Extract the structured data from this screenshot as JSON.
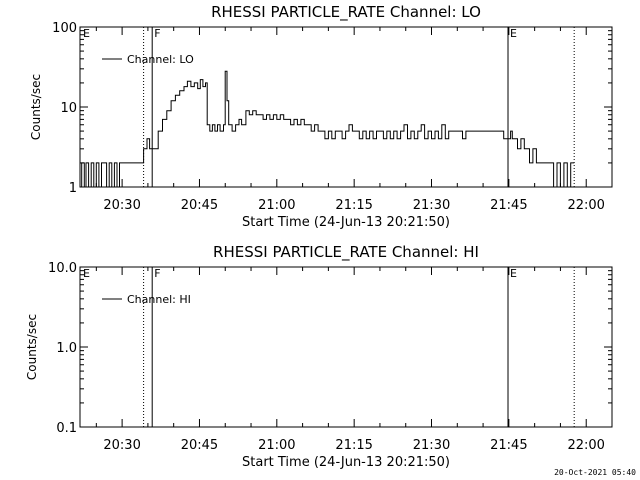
{
  "chart_data": [
    {
      "type": "line",
      "title": "RHESSI PARTICLE_RATE Channel: LO",
      "xlabel": "Start Time (24-Jun-13 20:21:50)",
      "ylabel": "Counts/sec",
      "yscale": "log",
      "ylim": [
        1,
        100
      ],
      "xlim": [
        "20:21:50",
        "22:05:00"
      ],
      "xticks": [
        "20:30",
        "20:45",
        "21:00",
        "21:15",
        "21:30",
        "21:45",
        "22:00"
      ],
      "yticks": [
        "1",
        "10",
        "100"
      ],
      "legend": {
        "label": "Channel: LO",
        "placement": "top-left"
      },
      "markers": [
        {
          "time": "20:34:10",
          "style": "dotted",
          "label": "E"
        },
        {
          "time": "20:35:50",
          "style": "solid",
          "label": "F"
        },
        {
          "time": "21:44:50",
          "style": "solid",
          "label": "E"
        },
        {
          "time": "21:57:40",
          "style": "dotted",
          "label": ""
        }
      ],
      "edge_labels": [
        "E"
      ],
      "series": [
        {
          "name": "Channel: LO",
          "points": [
            [
              "20:21:50",
              1
            ],
            [
              "20:22:10",
              2
            ],
            [
              "20:22:40",
              1
            ],
            [
              "20:23:00",
              2
            ],
            [
              "20:23:30",
              1
            ],
            [
              "20:24:00",
              2
            ],
            [
              "20:24:30",
              1
            ],
            [
              "20:25:00",
              2
            ],
            [
              "20:25:30",
              1
            ],
            [
              "20:26:00",
              2
            ],
            [
              "20:26:30",
              2
            ],
            [
              "20:27:00",
              1
            ],
            [
              "20:27:30",
              2
            ],
            [
              "20:28:00",
              1
            ],
            [
              "20:28:30",
              2
            ],
            [
              "20:29:00",
              1
            ],
            [
              "20:29:30",
              2
            ],
            [
              "20:30:00",
              2
            ],
            [
              "20:31:00",
              2
            ],
            [
              "20:32:00",
              2
            ],
            [
              "20:33:00",
              2
            ],
            [
              "20:33:50",
              2
            ],
            [
              "20:34:10",
              3
            ],
            [
              "20:34:50",
              4
            ],
            [
              "20:35:20",
              3
            ],
            [
              "20:35:50",
              3
            ],
            [
              "20:36:30",
              3
            ],
            [
              "20:37:00",
              5
            ],
            [
              "20:37:50",
              7
            ],
            [
              "20:38:40",
              9
            ],
            [
              "20:39:30",
              12
            ],
            [
              "20:40:20",
              14
            ],
            [
              "20:41:10",
              16
            ],
            [
              "20:42:00",
              18
            ],
            [
              "20:42:40",
              21
            ],
            [
              "20:43:20",
              18
            ],
            [
              "20:44:00",
              20
            ],
            [
              "20:44:40",
              17
            ],
            [
              "20:45:10",
              22
            ],
            [
              "20:45:40",
              18
            ],
            [
              "20:46:10",
              20
            ],
            [
              "20:46:30",
              6
            ],
            [
              "20:47:00",
              5
            ],
            [
              "20:47:30",
              6
            ],
            [
              "20:48:00",
              5
            ],
            [
              "20:48:30",
              6
            ],
            [
              "20:49:00",
              5
            ],
            [
              "20:49:40",
              6
            ],
            [
              "20:50:00",
              28
            ],
            [
              "20:50:20",
              12
            ],
            [
              "20:50:40",
              6
            ],
            [
              "20:51:20",
              5
            ],
            [
              "20:52:00",
              6
            ],
            [
              "20:52:40",
              7
            ],
            [
              "20:53:10",
              6
            ],
            [
              "20:54:00",
              9
            ],
            [
              "20:54:40",
              8
            ],
            [
              "20:55:20",
              9
            ],
            [
              "20:56:00",
              8
            ],
            [
              "20:56:40",
              8
            ],
            [
              "20:57:20",
              7
            ],
            [
              "20:58:00",
              8
            ],
            [
              "20:58:40",
              7
            ],
            [
              "20:59:20",
              8
            ],
            [
              "21:00:00",
              7
            ],
            [
              "21:00:40",
              8
            ],
            [
              "21:01:20",
              7
            ],
            [
              "21:02:00",
              7
            ],
            [
              "21:02:40",
              6
            ],
            [
              "21:03:20",
              7
            ],
            [
              "21:04:00",
              6
            ],
            [
              "21:04:40",
              7
            ],
            [
              "21:05:20",
              6
            ],
            [
              "21:06:00",
              6
            ],
            [
              "21:06:40",
              5
            ],
            [
              "21:07:20",
              6
            ],
            [
              "21:08:00",
              5
            ],
            [
              "21:08:40",
              5
            ],
            [
              "21:09:20",
              4
            ],
            [
              "21:10:00",
              5
            ],
            [
              "21:10:40",
              4
            ],
            [
              "21:11:20",
              5
            ],
            [
              "21:12:00",
              5
            ],
            [
              "21:12:40",
              4
            ],
            [
              "21:13:20",
              5
            ],
            [
              "21:14:00",
              6
            ],
            [
              "21:14:40",
              5
            ],
            [
              "21:15:20",
              5
            ],
            [
              "21:16:00",
              4
            ],
            [
              "21:16:40",
              5
            ],
            [
              "21:17:20",
              4
            ],
            [
              "21:18:00",
              5
            ],
            [
              "21:18:40",
              4
            ],
            [
              "21:19:20",
              5
            ],
            [
              "21:20:00",
              5
            ],
            [
              "21:20:40",
              4
            ],
            [
              "21:21:20",
              5
            ],
            [
              "21:22:00",
              4
            ],
            [
              "21:22:40",
              5
            ],
            [
              "21:23:20",
              4
            ],
            [
              "21:24:00",
              5
            ],
            [
              "21:24:40",
              6
            ],
            [
              "21:25:20",
              4
            ],
            [
              "21:26:00",
              5
            ],
            [
              "21:26:40",
              4
            ],
            [
              "21:27:20",
              5
            ],
            [
              "21:28:00",
              6
            ],
            [
              "21:28:40",
              4
            ],
            [
              "21:29:20",
              5
            ],
            [
              "21:30:00",
              4
            ],
            [
              "21:30:40",
              5
            ],
            [
              "21:31:20",
              4
            ],
            [
              "21:32:00",
              6
            ],
            [
              "21:32:40",
              4
            ],
            [
              "21:33:20",
              5
            ],
            [
              "21:34:00",
              5
            ],
            [
              "21:34:40",
              5
            ],
            [
              "21:35:20",
              5
            ],
            [
              "21:36:00",
              4
            ],
            [
              "21:36:40",
              5
            ],
            [
              "21:37:20",
              5
            ],
            [
              "21:38:00",
              5
            ],
            [
              "21:38:40",
              5
            ],
            [
              "21:39:20",
              5
            ],
            [
              "21:40:00",
              5
            ],
            [
              "21:40:40",
              5
            ],
            [
              "21:41:20",
              5
            ],
            [
              "21:42:00",
              5
            ],
            [
              "21:42:40",
              5
            ],
            [
              "21:43:20",
              5
            ],
            [
              "21:44:00",
              4
            ],
            [
              "21:44:40",
              4
            ],
            [
              "21:45:20",
              5
            ],
            [
              "21:45:40",
              4
            ],
            [
              "21:46:00",
              4
            ],
            [
              "21:46:40",
              3
            ],
            [
              "21:47:20",
              4
            ],
            [
              "21:48:00",
              3
            ],
            [
              "21:48:40",
              3
            ],
            [
              "21:49:00",
              2
            ],
            [
              "21:49:40",
              3
            ],
            [
              "21:50:20",
              2
            ],
            [
              "21:51:00",
              2
            ],
            [
              "21:51:40",
              2
            ],
            [
              "21:52:20",
              2
            ],
            [
              "21:53:00",
              2
            ],
            [
              "21:53:40",
              1
            ],
            [
              "21:54:20",
              2
            ],
            [
              "21:55:00",
              1
            ],
            [
              "21:55:40",
              2
            ],
            [
              "21:56:20",
              1
            ],
            [
              "21:57:00",
              2
            ],
            [
              "21:57:40",
              2
            ]
          ]
        }
      ]
    },
    {
      "type": "line",
      "title": "RHESSI PARTICLE_RATE Channel: HI",
      "xlabel": "Start Time (24-Jun-13 20:21:50)",
      "ylabel": "Counts/sec",
      "yscale": "log",
      "ylim": [
        0.1,
        10
      ],
      "xlim": [
        "20:21:50",
        "22:05:00"
      ],
      "xticks": [
        "20:30",
        "20:45",
        "21:00",
        "21:15",
        "21:30",
        "21:45",
        "22:00"
      ],
      "yticks": [
        "0.1",
        "1.0",
        "10.0"
      ],
      "legend": {
        "label": "Channel: HI",
        "placement": "top-left"
      },
      "markers": [
        {
          "time": "20:34:10",
          "style": "dotted",
          "label": "E"
        },
        {
          "time": "20:35:50",
          "style": "solid",
          "label": "F"
        },
        {
          "time": "21:44:50",
          "style": "solid",
          "label": "E"
        },
        {
          "time": "21:57:40",
          "style": "dotted",
          "label": ""
        }
      ],
      "edge_labels": [
        "E"
      ],
      "series": [
        {
          "name": "Channel: HI",
          "points": []
        }
      ]
    }
  ],
  "footer": {
    "timestamp": "20-Oct-2021 05:40"
  }
}
